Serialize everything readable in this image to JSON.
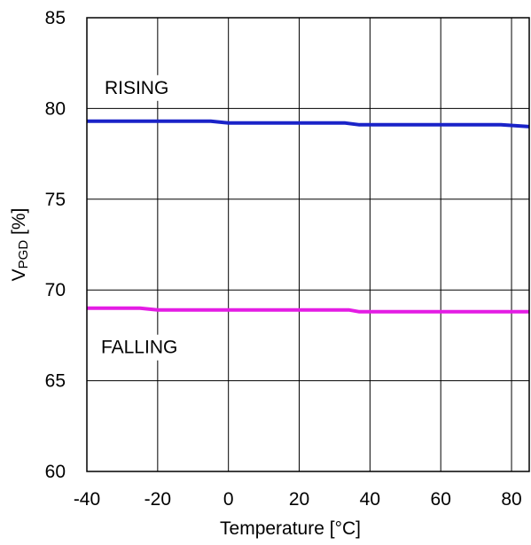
{
  "chart_data": {
    "type": "line",
    "title": "",
    "xlabel": "Temperature [°C]",
    "ylabel": {
      "main": "V",
      "subscript": "PGD",
      "suffix": " [%]"
    },
    "xlim": [
      -40,
      85
    ],
    "ylim": [
      60,
      85
    ],
    "xticks": [
      -40,
      -20,
      0,
      20,
      40,
      60,
      80
    ],
    "xtick_labels": [
      "-40",
      "-20",
      "0",
      "20",
      "40",
      "60",
      "80"
    ],
    "yticks": [
      60,
      65,
      70,
      75,
      80,
      85
    ],
    "ytick_labels": [
      "60",
      "65",
      "70",
      "75",
      "80",
      "85"
    ],
    "grid": true,
    "series": [
      {
        "name": "RISING",
        "color": "#1a23c8",
        "x": [
          -40,
          -5,
          0,
          33,
          37,
          77,
          85
        ],
        "y": [
          79.3,
          79.3,
          79.2,
          79.2,
          79.1,
          79.1,
          79.0
        ]
      },
      {
        "name": "FALLING",
        "color": "#e41ce4",
        "x": [
          -40,
          -25,
          -20,
          34,
          37,
          85
        ],
        "y": [
          69.0,
          69.0,
          68.9,
          68.9,
          68.8,
          68.8
        ]
      }
    ],
    "annotations": [
      {
        "text": "RISING",
        "x": -35,
        "y": 81.2
      },
      {
        "text": "FALLING",
        "x": -36,
        "y": 66.9
      }
    ]
  }
}
